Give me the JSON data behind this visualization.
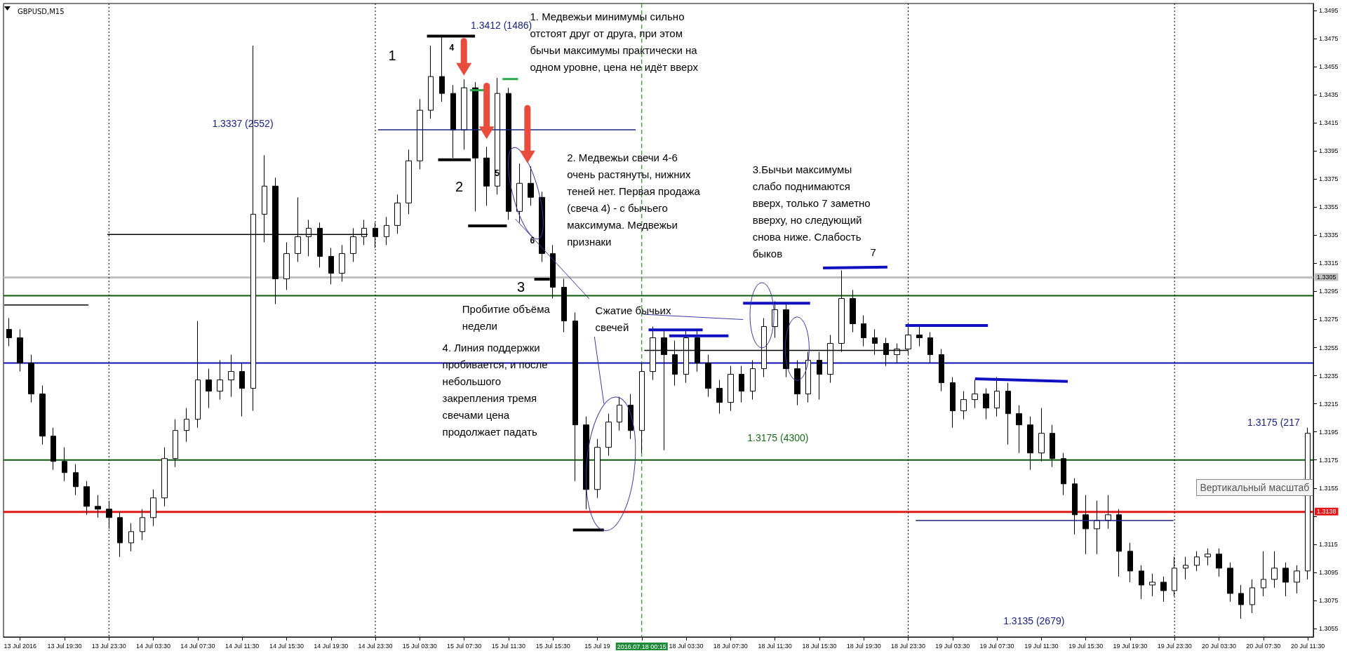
{
  "chart_data": {
    "type": "candlestick",
    "title": "GBPUSD,M15",
    "color": "#000000",
    "categories": [
      null,
      "13 Jul 2016",
      null,
      null,
      null,
      "13 Jul 19:30",
      null,
      null,
      null,
      "13 Jul 23:30",
      null,
      null,
      null,
      "14 Jul 03:30",
      null,
      null,
      null,
      "14 Jul 07:30",
      null,
      null,
      null,
      "14 Jul 11:30",
      null,
      null,
      null,
      "14 Jul 15:30",
      null,
      null,
      null,
      "14 Jul 19:30",
      null,
      null,
      null,
      "14 Jul 23:30",
      null,
      null,
      null,
      "15 Jul 03:30",
      null,
      null,
      null,
      "15 Jul 07:30",
      null,
      null,
      null,
      "15 Jul 11:30",
      null,
      null,
      null,
      "15 Jul 15:30",
      null,
      null,
      null,
      "15 Jul 19",
      null,
      null,
      null,
      "2016.07.18 00:15",
      null,
      null,
      null,
      "18 Jul 03:30",
      null,
      null,
      null,
      "18 Jul 07:30",
      null,
      null,
      null,
      "18 Jul 11:30",
      null,
      null,
      null,
      "18 Jul 15:30",
      null,
      null,
      null,
      "18 Jul 19:30",
      null,
      null,
      null,
      "18 Jul 23:30",
      null,
      null,
      null,
      "19 Jul 03:30",
      null,
      null,
      null,
      "19 Jul 07:30",
      null,
      null,
      null,
      "19 Jul 11:30",
      null,
      null,
      null,
      "19 Jul 15:30",
      null,
      null,
      null,
      "19 Jul 19:30",
      null,
      null,
      null,
      "19 Jul 23:30",
      null,
      null,
      null,
      "20 Jul 03:30",
      null,
      null,
      null,
      "20 Jul 07:30",
      null,
      null,
      null,
      "20 Jul 11:30"
    ],
    "ohlc": [
      [
        1.3268,
        1.3276,
        1.3256,
        1.3262
      ],
      [
        1.3262,
        1.3268,
        1.3238,
        1.3244
      ],
      [
        1.3244,
        1.325,
        1.3216,
        1.3222
      ],
      [
        1.3222,
        1.3228,
        1.3186,
        1.3192
      ],
      [
        1.3192,
        1.3198,
        1.3168,
        1.3174
      ],
      [
        1.3174,
        1.3184,
        1.316,
        1.3166
      ],
      [
        1.3166,
        1.3172,
        1.315,
        1.3156
      ],
      [
        1.3156,
        1.316,
        1.3136,
        1.3142
      ],
      [
        1.3142,
        1.315,
        1.3134,
        1.314
      ],
      [
        1.314,
        1.3146,
        1.3126,
        1.3134
      ],
      [
        1.3134,
        1.3138,
        1.3106,
        1.3116
      ],
      [
        1.3116,
        1.313,
        1.311,
        1.3124
      ],
      [
        1.3124,
        1.314,
        1.3118,
        1.3134
      ],
      [
        1.3134,
        1.3154,
        1.3128,
        1.3148
      ],
      [
        1.3148,
        1.3184,
        1.3142,
        1.3176
      ],
      [
        1.3176,
        1.3204,
        1.317,
        1.3196
      ],
      [
        1.3196,
        1.3212,
        1.3188,
        1.3204
      ],
      [
        1.3204,
        1.3274,
        1.3198,
        1.3232
      ],
      [
        1.3232,
        1.324,
        1.3212,
        1.3224
      ],
      [
        1.3224,
        1.3246,
        1.3218,
        1.3232
      ],
      [
        1.3232,
        1.325,
        1.322,
        1.3238
      ],
      [
        1.3238,
        1.3244,
        1.3206,
        1.3226
      ],
      [
        1.3226,
        1.347,
        1.321,
        1.335
      ],
      [
        1.335,
        1.3392,
        1.333,
        1.337
      ],
      [
        1.337,
        1.3376,
        1.3286,
        1.3304
      ],
      [
        1.3304,
        1.333,
        1.3296,
        1.3322
      ],
      [
        1.3322,
        1.3362,
        1.3316,
        1.3334
      ],
      [
        1.3334,
        1.3346,
        1.332,
        1.334
      ],
      [
        1.334,
        1.3344,
        1.3312,
        1.332
      ],
      [
        1.332,
        1.3326,
        1.33,
        1.3308
      ],
      [
        1.3308,
        1.3328,
        1.3302,
        1.3322
      ],
      [
        1.3322,
        1.334,
        1.3316,
        1.3334
      ],
      [
        1.3334,
        1.3346,
        1.3328,
        1.334
      ],
      [
        1.334,
        1.3344,
        1.3326,
        1.3334
      ],
      [
        1.3334,
        1.3348,
        1.3328,
        1.3342
      ],
      [
        1.3342,
        1.3364,
        1.3336,
        1.3358
      ],
      [
        1.3358,
        1.3396,
        1.335,
        1.3388
      ],
      [
        1.3388,
        1.3432,
        1.3382,
        1.3424
      ],
      [
        1.3424,
        1.347,
        1.3418,
        1.3448
      ],
      [
        1.3448,
        1.3476,
        1.343,
        1.3436
      ],
      [
        1.3436,
        1.3442,
        1.339,
        1.341
      ],
      [
        1.341,
        1.3446,
        1.3396,
        1.344
      ],
      [
        1.344,
        1.3444,
        1.3352,
        1.339
      ],
      [
        1.339,
        1.3398,
        1.3356,
        1.337
      ],
      [
        1.337,
        1.3447,
        1.3364,
        1.3436
      ],
      [
        1.3436,
        1.344,
        1.3346,
        1.3352
      ],
      [
        1.3352,
        1.3386,
        1.3344,
        1.3372
      ],
      [
        1.3372,
        1.3384,
        1.3356,
        1.3362
      ],
      [
        1.3362,
        1.3366,
        1.3316,
        1.3322
      ],
      [
        1.3322,
        1.3328,
        1.329,
        1.3298
      ],
      [
        1.3298,
        1.3304,
        1.3266,
        1.3274
      ],
      [
        1.3274,
        1.328,
        1.316,
        1.32
      ],
      [
        1.32,
        1.3206,
        1.314,
        1.3154
      ],
      [
        1.3154,
        1.319,
        1.3148,
        1.3184
      ],
      [
        1.3184,
        1.3208,
        1.3178,
        1.3202
      ],
      [
        1.3202,
        1.322,
        1.3196,
        1.3214
      ],
      [
        1.3214,
        1.3222,
        1.319,
        1.3196
      ],
      [
        1.3196,
        1.3244,
        1.318,
        1.3238
      ],
      [
        1.3238,
        1.327,
        1.3232,
        1.3262
      ],
      [
        1.3262,
        1.3268,
        1.3182,
        1.325
      ],
      [
        1.325,
        1.326,
        1.3228,
        1.3236
      ],
      [
        1.3236,
        1.3268,
        1.323,
        1.3262
      ],
      [
        1.3262,
        1.3268,
        1.3238,
        1.3244
      ],
      [
        1.3244,
        1.325,
        1.322,
        1.3226
      ],
      [
        1.3226,
        1.3232,
        1.3208,
        1.3216
      ],
      [
        1.3216,
        1.3242,
        1.321,
        1.3236
      ],
      [
        1.3236,
        1.3242,
        1.3216,
        1.3224
      ],
      [
        1.3224,
        1.3246,
        1.3218,
        1.324
      ],
      [
        1.324,
        1.3276,
        1.3234,
        1.327
      ],
      [
        1.327,
        1.3288,
        1.3262,
        1.3282
      ],
      [
        1.3282,
        1.3286,
        1.3234,
        1.324
      ],
      [
        1.324,
        1.3246,
        1.3214,
        1.3222
      ],
      [
        1.3222,
        1.3252,
        1.3216,
        1.3246
      ],
      [
        1.3246,
        1.3252,
        1.3218,
        1.3236
      ],
      [
        1.3236,
        1.3264,
        1.323,
        1.3258
      ],
      [
        1.3258,
        1.331,
        1.3252,
        1.329
      ],
      [
        1.329,
        1.3296,
        1.3266,
        1.3272
      ],
      [
        1.3272,
        1.3278,
        1.3256,
        1.3262
      ],
      [
        1.3262,
        1.3268,
        1.325,
        1.3258
      ],
      [
        1.3258,
        1.3262,
        1.3242,
        1.325
      ],
      [
        1.325,
        1.3258,
        1.3244,
        1.3254
      ],
      [
        1.3254,
        1.327,
        1.325,
        1.3264
      ],
      [
        1.3264,
        1.327,
        1.3256,
        1.3262
      ],
      [
        1.3262,
        1.3266,
        1.3244,
        1.325
      ],
      [
        1.325,
        1.3254,
        1.3224,
        1.323
      ],
      [
        1.323,
        1.3234,
        1.3198,
        1.321
      ],
      [
        1.321,
        1.3224,
        1.3204,
        1.3218
      ],
      [
        1.3218,
        1.3232,
        1.3212,
        1.3222
      ],
      [
        1.3222,
        1.3226,
        1.3204,
        1.3212
      ],
      [
        1.3212,
        1.3234,
        1.3206,
        1.3224
      ],
      [
        1.3224,
        1.323,
        1.3186,
        1.3208
      ],
      [
        1.3208,
        1.3214,
        1.318,
        1.32
      ],
      [
        1.32,
        1.3206,
        1.3168,
        1.318
      ],
      [
        1.318,
        1.3212,
        1.3174,
        1.3194
      ],
      [
        1.3194,
        1.32,
        1.317,
        1.3176
      ],
      [
        1.3176,
        1.318,
        1.315,
        1.3158
      ],
      [
        1.3158,
        1.3162,
        1.3122,
        1.3136
      ],
      [
        1.3136,
        1.315,
        1.3108,
        1.3126
      ],
      [
        1.3126,
        1.3146,
        1.3108,
        1.3132
      ],
      [
        1.3132,
        1.315,
        1.3126,
        1.3136
      ],
      [
        1.3136,
        1.314,
        1.3092,
        1.311
      ],
      [
        1.311,
        1.3116,
        1.3088,
        1.3096
      ],
      [
        1.3096,
        1.31,
        1.3076,
        1.3086
      ],
      [
        1.3086,
        1.3094,
        1.3078,
        1.3088
      ],
      [
        1.3088,
        1.3092,
        1.3074,
        1.3082
      ],
      [
        1.3082,
        1.3106,
        1.3078,
        1.3098
      ],
      [
        1.3098,
        1.3106,
        1.309,
        1.31
      ],
      [
        1.31,
        1.311,
        1.3096,
        1.3106
      ],
      [
        1.3106,
        1.3112,
        1.31,
        1.3108
      ],
      [
        1.3108,
        1.3112,
        1.3092,
        1.3098
      ],
      [
        1.3098,
        1.3102,
        1.3074,
        1.308
      ],
      [
        1.308,
        1.3086,
        1.3062,
        1.3072
      ],
      [
        1.3072,
        1.309,
        1.3066,
        1.3084
      ],
      [
        1.3084,
        1.311,
        1.3078,
        1.309
      ],
      [
        1.309,
        1.311,
        1.3084,
        1.3098
      ],
      [
        1.3098,
        1.3102,
        1.3078,
        1.3088
      ],
      [
        1.3088,
        1.31,
        1.308,
        1.3096
      ],
      [
        1.3096,
        1.3198,
        1.309,
        1.3194
      ]
    ],
    "ylim": [
      1.3049,
      1.35
    ],
    "yticks": [
      1.3055,
      1.3075,
      1.3095,
      1.3115,
      {
        "value": 1.3135,
        "label": null
      },
      1.3155,
      1.3175,
      1.3195,
      1.3215,
      1.3235,
      1.3255,
      1.3275,
      1.3295,
      1.3315,
      1.3335,
      1.3355,
      1.3375,
      1.3395,
      1.3415,
      1.3435,
      1.3455,
      1.3475,
      1.3495
    ],
    "ref_lines": [
      {
        "axis": "y",
        "value": 1.3305,
        "label": "1.3305",
        "color": "#c0c0c0",
        "line_style": "solid"
      },
      {
        "axis": "y",
        "value": 1.3292,
        "color": "#0b5a0b",
        "line_style": "solid"
      },
      {
        "axis": "y",
        "value": 1.3244,
        "color": "#1010b0",
        "line_style": "solid"
      },
      {
        "axis": "y",
        "value": 1.3175,
        "color": "#0b5a0b",
        "line_style": "solid"
      },
      {
        "axis": "y",
        "value": 1.3138,
        "label": "1.3138",
        "color": "#e01818",
        "line_style": "solid"
      },
      {
        "axis": "x",
        "value": "13 Jul 23:30",
        "color": "#000000",
        "line_style": "dotted"
      },
      {
        "axis": "x",
        "value": "14 Jul 23:30",
        "color": "#000000",
        "line_style": "dotted"
      },
      {
        "axis": "x",
        "value": "2016.07.18 00:15",
        "color": "#0b7a0b",
        "line_style": "dashed"
      },
      {
        "axis": "x",
        "value": "18 Jul 23:30",
        "color": "#000000",
        "line_style": "dotted"
      },
      {
        "axis": "x",
        "value": "19 Jul 23:30",
        "color": "#000000",
        "line_style": "dotted"
      }
    ],
    "annotations": [
      "1.3412 (1486)",
      "1.3337 (2552)",
      "1.3175 (4300)",
      "1.3135 (2679)",
      "1.3175 (217",
      "1",
      "2",
      "3",
      "4",
      "5",
      "6",
      "7",
      "1. Медвежьи минимумы сильно отстоят друг от друга, при этом бычьи максимумы практически на одном уровне, цена не идёт вверх",
      "2. Медвежьи свечи 4-6 очень растянуты, нижних теней нет. Первая продажа (свеча 4) - с бычьего максимума. Медвежьи признаки",
      "3.Бычьи максимумы слабо поднимаются вверх, только 7 заметно вверху, но следующий снова ниже. Слабость быков",
      "Пробитие объёма недели",
      "Сжатие бычьих свечей",
      "4. Линия поддержки пробивается, и после небольшого закрепления  тремя свечами цена продолжает падать",
      "Вертикальный масштаб"
    ]
  }
}
